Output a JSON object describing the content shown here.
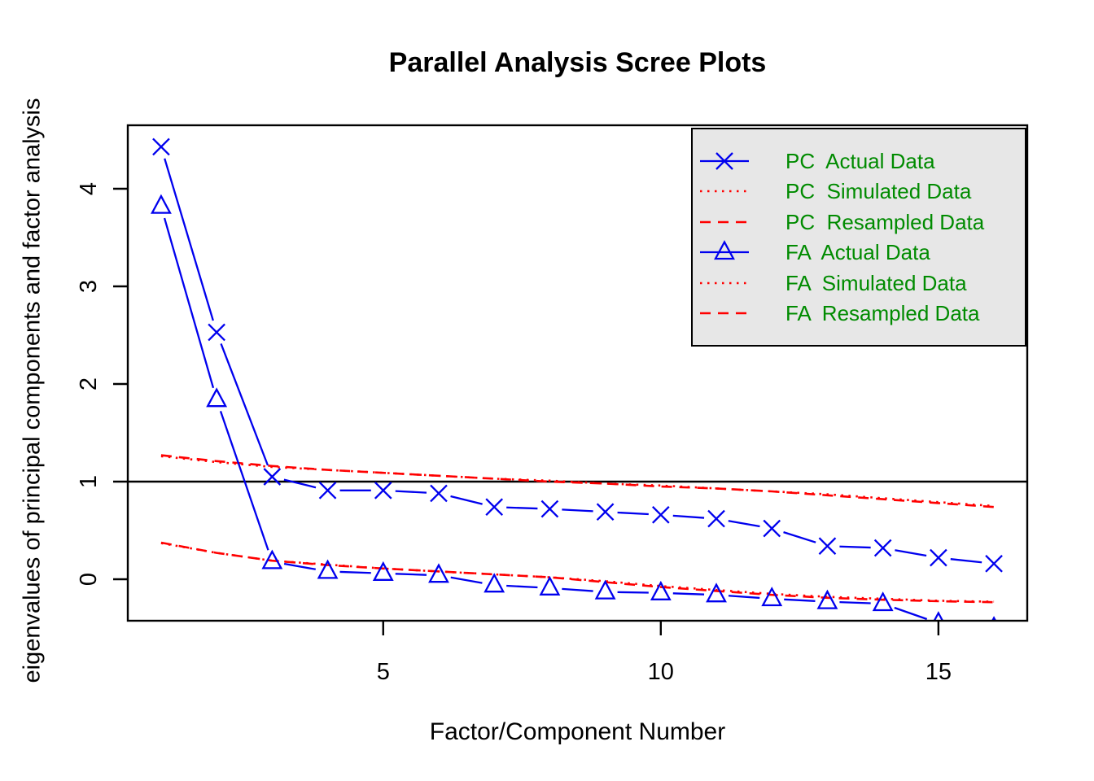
{
  "figure": {
    "title": "Parallel Analysis Scree Plots",
    "x_axis_title": "Factor/Component Number",
    "y_axis_title": "eigenvalues of principal components and factor analysis"
  },
  "colors": {
    "actual_line": "#0000EE",
    "simulated_line": "#FF0000",
    "reference_line": "#000000",
    "axis": "#000000",
    "legend_text": "#008B00",
    "legend_bg": "#E7E7E7"
  },
  "legend": {
    "items": [
      {
        "label": "PC  Actual Data",
        "line": "solid",
        "marker": "x",
        "color": "#0000EE"
      },
      {
        "label": "PC  Simulated Data",
        "line": "dotted",
        "marker": "none",
        "color": "#FF0000"
      },
      {
        "label": "PC  Resampled Data",
        "line": "dashed",
        "marker": "none",
        "color": "#FF0000"
      },
      {
        "label": "FA  Actual Data",
        "line": "solid",
        "marker": "triangle",
        "color": "#0000EE"
      },
      {
        "label": "FA  Simulated Data",
        "line": "dotted",
        "marker": "none",
        "color": "#FF0000"
      },
      {
        "label": "FA  Resampled Data",
        "line": "dashed",
        "marker": "none",
        "color": "#FF0000"
      }
    ]
  },
  "chart_data": {
    "type": "line",
    "title": "Parallel Analysis Scree Plots",
    "xlabel": "Factor/Component Number",
    "ylabel": "eigenvalues of principal components and factor analysis",
    "x": [
      1,
      2,
      3,
      4,
      5,
      6,
      7,
      8,
      9,
      10,
      11,
      12,
      13,
      14,
      15,
      16
    ],
    "x_ticks": [
      5,
      10,
      15
    ],
    "y_ticks": [
      0,
      1,
      2,
      3,
      4
    ],
    "xlim": [
      0.4,
      16.6
    ],
    "ylim": [
      -0.425,
      4.65
    ],
    "grid": false,
    "legend_position": "top-right",
    "reference_line_y": 1,
    "series": [
      {
        "name": "PC Actual Data",
        "line": "solid",
        "marker": "x",
        "color": "#0000EE",
        "values": [
          4.43,
          2.53,
          1.05,
          0.91,
          0.91,
          0.88,
          0.74,
          0.72,
          0.69,
          0.66,
          0.62,
          0.52,
          0.34,
          0.32,
          0.22,
          0.16
        ]
      },
      {
        "name": "PC Simulated Data",
        "line": "dotted",
        "marker": "none",
        "color": "#FF0000",
        "values": [
          1.26,
          1.2,
          1.15,
          1.12,
          1.09,
          1.06,
          1.03,
          1.01,
          0.98,
          0.96,
          0.93,
          0.9,
          0.87,
          0.83,
          0.79,
          0.75
        ]
      },
      {
        "name": "PC Resampled Data",
        "line": "dashed",
        "marker": "none",
        "color": "#FF0000",
        "values": [
          1.27,
          1.21,
          1.16,
          1.12,
          1.09,
          1.06,
          1.03,
          1.0,
          0.98,
          0.95,
          0.93,
          0.9,
          0.86,
          0.82,
          0.78,
          0.74
        ]
      },
      {
        "name": "FA Actual Data",
        "line": "solid",
        "marker": "triangle",
        "color": "#0000EE",
        "values": [
          3.82,
          1.84,
          0.18,
          0.08,
          0.06,
          0.04,
          -0.06,
          -0.09,
          -0.13,
          -0.14,
          -0.16,
          -0.2,
          -0.23,
          -0.25,
          -0.45,
          -0.5
        ]
      },
      {
        "name": "FA Simulated Data",
        "line": "dotted",
        "marker": "none",
        "color": "#FF0000",
        "values": [
          0.37,
          0.27,
          0.19,
          0.15,
          0.11,
          0.08,
          0.05,
          0.02,
          -0.02,
          -0.07,
          -0.11,
          -0.15,
          -0.18,
          -0.2,
          -0.22,
          -0.23
        ]
      },
      {
        "name": "FA Resampled Data",
        "line": "dashed",
        "marker": "none",
        "color": "#FF0000",
        "values": [
          0.375,
          0.27,
          0.19,
          0.145,
          0.11,
          0.08,
          0.05,
          0.02,
          -0.03,
          -0.08,
          -0.12,
          -0.16,
          -0.19,
          -0.21,
          -0.225,
          -0.235
        ]
      }
    ]
  }
}
